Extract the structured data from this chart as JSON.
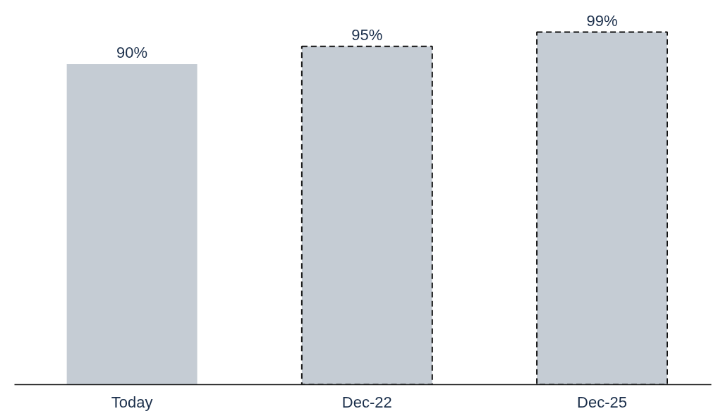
{
  "chart_data": {
    "type": "bar",
    "categories": [
      "Today",
      "Dec-22",
      "Dec-25"
    ],
    "series": [
      {
        "color": "#c5ccd4",
        "values": [
          90,
          null,
          null
        ],
        "value_labels": [
          "90%",
          null,
          null
        ],
        "line_style": "solid"
      },
      {
        "color": "#c5ccd4",
        "values": [
          null,
          95,
          99
        ],
        "value_labels": [
          null,
          "95%",
          "99%"
        ],
        "line_style": "dashed"
      }
    ],
    "grid": false
  }
}
